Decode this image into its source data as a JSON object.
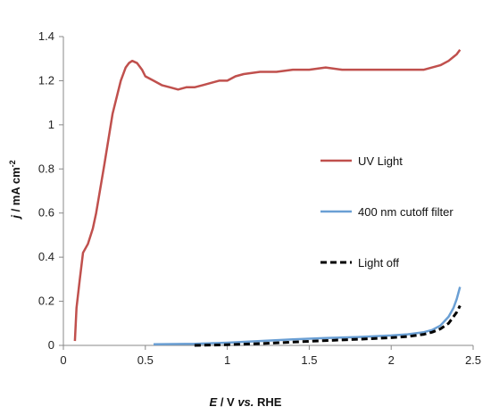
{
  "chart_data": {
    "type": "line",
    "xlabel": {
      "italic": "E",
      "plain1": " / V ",
      "italic2": "vs.",
      "plain2": " RHE"
    },
    "ylabel": {
      "italic": "j",
      "plain": " / mA cm",
      "sup": "-2"
    },
    "xlim": [
      0,
      2.5
    ],
    "ylim": [
      0,
      1.4
    ],
    "xticks": [
      0,
      0.5,
      1,
      1.5,
      2,
      2.5
    ],
    "xtick_labels": [
      "0",
      "0.5",
      "1",
      "1.5",
      "2",
      "2.5"
    ],
    "yticks": [
      0,
      0.2,
      0.4,
      0.6,
      0.8,
      1,
      1.2,
      1.4
    ],
    "ytick_labels": [
      "0",
      "0.2",
      "0.4",
      "0.6",
      "0.8",
      "1",
      "1.2",
      "1.4"
    ],
    "grid": false,
    "legend": "right",
    "series": [
      {
        "name": "UV Light",
        "color": "#c0504d",
        "dash": "solid",
        "x": [
          0.07,
          0.08,
          0.1,
          0.12,
          0.15,
          0.18,
          0.2,
          0.25,
          0.3,
          0.35,
          0.38,
          0.4,
          0.42,
          0.45,
          0.48,
          0.5,
          0.55,
          0.6,
          0.65,
          0.7,
          0.75,
          0.8,
          0.85,
          0.9,
          0.95,
          1.0,
          1.05,
          1.1,
          1.2,
          1.3,
          1.4,
          1.5,
          1.6,
          1.7,
          1.8,
          1.9,
          2.0,
          2.1,
          2.2,
          2.25,
          2.3,
          2.35,
          2.4,
          2.42
        ],
        "y": [
          0.02,
          0.17,
          0.3,
          0.42,
          0.46,
          0.53,
          0.6,
          0.82,
          1.05,
          1.2,
          1.26,
          1.28,
          1.29,
          1.28,
          1.25,
          1.22,
          1.2,
          1.18,
          1.17,
          1.16,
          1.17,
          1.17,
          1.18,
          1.19,
          1.2,
          1.2,
          1.22,
          1.23,
          1.24,
          1.24,
          1.25,
          1.25,
          1.26,
          1.25,
          1.25,
          1.25,
          1.25,
          1.25,
          1.25,
          1.26,
          1.27,
          1.29,
          1.32,
          1.34
        ]
      },
      {
        "name": "400 nm cutoff filter",
        "color": "#6a9fd4",
        "dash": "solid",
        "x": [
          0.55,
          0.8,
          1.0,
          1.2,
          1.4,
          1.6,
          1.8,
          2.0,
          2.1,
          2.2,
          2.25,
          2.3,
          2.35,
          2.38,
          2.4,
          2.42
        ],
        "y": [
          0.005,
          0.007,
          0.012,
          0.02,
          0.027,
          0.033,
          0.038,
          0.045,
          0.05,
          0.06,
          0.07,
          0.09,
          0.13,
          0.17,
          0.21,
          0.265
        ]
      },
      {
        "name": "Light off",
        "color": "#000000",
        "dash": "dashed",
        "x": [
          0.8,
          1.0,
          1.2,
          1.4,
          1.6,
          1.8,
          2.0,
          2.1,
          2.2,
          2.25,
          2.3,
          2.35,
          2.4,
          2.42
        ],
        "y": [
          0.0,
          0.003,
          0.008,
          0.015,
          0.022,
          0.028,
          0.035,
          0.04,
          0.05,
          0.06,
          0.075,
          0.1,
          0.15,
          0.18
        ]
      }
    ]
  }
}
